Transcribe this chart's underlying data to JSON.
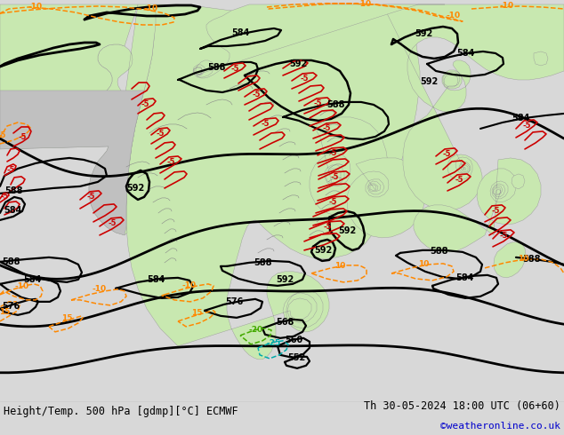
{
  "title_left": "Height/Temp. 500 hPa [gdmp][°C] ECMWF",
  "title_right": "Th 30-05-2024 18:00 UTC (06+60)",
  "copyright": "©weatheronline.co.uk",
  "figsize": [
    6.34,
    4.9
  ],
  "dpi": 100,
  "bg_ocean": "#d8d8d8",
  "bg_land_green": "#c8e8b0",
  "bg_land_gray": "#c0c0c0",
  "color_black": "#000000",
  "color_red": "#cc0000",
  "color_orange": "#ff8800",
  "color_green_isotherm": "#44aa00",
  "color_yellow_isotherm": "#aaaa00",
  "color_cyan_isotherm": "#00aaaa",
  "color_blue_text": "#0000cc",
  "bottom_bg": "#e8e8e8"
}
